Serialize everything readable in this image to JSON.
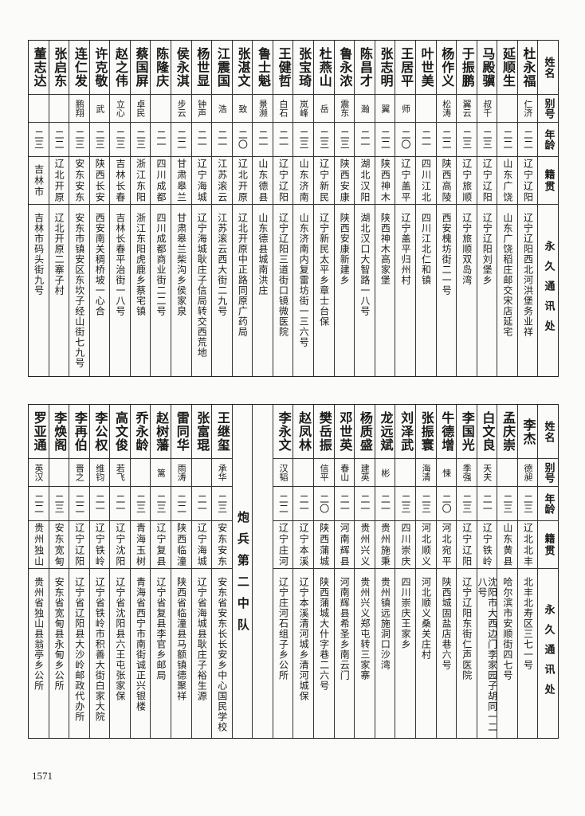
{
  "header": {
    "name": "姓名",
    "alias": "别号",
    "age": "年龄",
    "native": "籍贯",
    "address": "永久通讯处"
  },
  "top": {
    "rows": [
      {
        "name": "杜永福",
        "alias": "仁济",
        "age": "二二",
        "native": "辽宁辽阳",
        "address": "辽宁辽阳西北河洪堡务业祥"
      },
      {
        "name": "延顺生",
        "alias": "",
        "age": "二二",
        "native": "山东广饶",
        "address": "山东广饶稻庄邮交宋店延宅"
      },
      {
        "name": "马殿骥",
        "alias": "叔千",
        "age": "二三",
        "native": "辽宁辽阳",
        "address": "辽宁辽阳刘堡乡"
      },
      {
        "name": "于振鹏",
        "alias": "翼云",
        "age": "二三",
        "native": "辽宁旅顺",
        "address": "辽宁旅顺双岛湾"
      },
      {
        "name": "杨作义",
        "alias": "松涛",
        "age": "二二",
        "native": "陕西高陵",
        "address": "西安槐坊街二一号"
      },
      {
        "name": "叶世美",
        "alias": "",
        "age": "二一",
        "native": "四川江北",
        "address": "四川江北仁和镇"
      },
      {
        "name": "王居平",
        "alias": "师",
        "age": "二〇",
        "native": "辽宁盖平",
        "address": "辽宁盖平归州村"
      },
      {
        "name": "张志明",
        "alias": "翼",
        "age": "二二",
        "native": "陕西神木",
        "address": "陕西神木高家堡"
      },
      {
        "name": "陈昌才",
        "alias": "瀚",
        "age": "二一",
        "native": "湖北汉阳",
        "address": "湖北汉口大智路一八号"
      },
      {
        "name": "鲁永浓",
        "alias": "震东",
        "age": "二三",
        "native": "陕西安康",
        "address": "陕西安康新建乡"
      },
      {
        "name": "杜燕山",
        "alias": "岳",
        "age": "二三",
        "native": "辽宁新民",
        "address": "辽宁新民太平乡章士台保"
      },
      {
        "name": "张宝琦",
        "alias": "岚峰",
        "age": "二三",
        "native": "山东济南",
        "address": "山东济南内复雷坊街一三六号"
      },
      {
        "name": "王健哲",
        "alias": "白石",
        "age": "二一",
        "native": "辽宁辽阳",
        "address": "辽宁辽阳三道街口镜微医院"
      },
      {
        "name": "鲁士魁",
        "alias": "景濒",
        "age": "二一",
        "native": "山东德县",
        "address": "山东德县城南洪庄"
      },
      {
        "name": "张湛文",
        "alias": "致",
        "age": "二〇",
        "native": "辽北开原",
        "address": "辽北开原中正路同原广药局"
      },
      {
        "name": "江震国",
        "alias": "浩",
        "age": "二一",
        "native": "江苏滚云",
        "address": "江苏滚云西大街二九号"
      },
      {
        "name": "杨世显",
        "alias": "钟声",
        "age": "二一",
        "native": "辽宁海城",
        "address": "辽宁海城耿庄子信局转交西荒地"
      },
      {
        "name": "侯永淇",
        "alias": "步云",
        "age": "二二",
        "native": "甘肃皋兰",
        "address": "甘肃皋兰柴沟乡侯家泉"
      },
      {
        "name": "陈隆庆",
        "alias": "",
        "age": "二一",
        "native": "四川成都",
        "address": "四川成都商业街二二号"
      },
      {
        "name": "蔡国屏",
        "alias": "卓民",
        "age": "二三",
        "native": "浙江东阳",
        "address": "浙江东阳虎鹿乡蔡宅镇"
      },
      {
        "name": "赵之伟",
        "alias": "立心",
        "age": "二三",
        "native": "吉林长春",
        "address": "吉林长春平治街一八号"
      },
      {
        "name": "许克敬",
        "alias": "武",
        "age": "二三",
        "native": "陕西长安",
        "address": "西安南关稠桥坡一心合"
      },
      {
        "name": "连仁发",
        "alias": "鹏翔",
        "age": "二三",
        "native": "安东安东",
        "address": "安东市镇安区东坎子经山街七九号"
      },
      {
        "name": "张启东",
        "alias": "",
        "age": "二二",
        "native": "辽北开原",
        "address": "辽北开原二寨子村"
      },
      {
        "name": "董志达",
        "alias": "",
        "age": "二三",
        "native": "吉林市",
        "address": "吉林市码头街九号"
      }
    ]
  },
  "bottom": {
    "rows_right": [
      {
        "name": "李杰",
        "alias": "德昶",
        "age": "二三",
        "native": "辽北北丰",
        "address": "北丰北寿区三七一号"
      },
      {
        "name": "孟庆崇",
        "alias": "",
        "age": "二三",
        "native": "山东黄县",
        "address": "哈尔滨市安顺街四七号"
      },
      {
        "name": "白文良",
        "alias": "天夫",
        "age": "二一",
        "native": "辽宁铁岭",
        "address": "沈阳市大西边门李家园子胡同一二八号"
      },
      {
        "name": "李国光",
        "alias": "季强",
        "age": "二三",
        "native": "辽宁辽阳",
        "address": "辽宁辽阳东街仁声医院"
      },
      {
        "name": "牛德增",
        "alias": "悚",
        "age": "二〇",
        "native": "河北宛平",
        "address": "陕西城固盐店巷六号"
      },
      {
        "name": "张振寰",
        "alias": "海清",
        "age": "二三",
        "native": "河北顺义",
        "address": "河北顺义桑关庄村"
      },
      {
        "name": "刘泽武",
        "alias": "",
        "age": "二三",
        "native": "四川崇庆",
        "address": "四川崇庆王家乡"
      },
      {
        "name": "龙远斌",
        "alias": "彬",
        "age": "二一",
        "native": "贵州施秉",
        "address": "贵州镇远施洞口沙湾"
      },
      {
        "name": "杨质盛",
        "alias": "建英",
        "age": "二一",
        "native": "贵州兴义",
        "address": "贵州兴义郑屯转三家寨"
      },
      {
        "name": "邓世英",
        "alias": "春山",
        "age": "二一",
        "native": "河南辉县",
        "address": "河南辉县希圣乡南云门"
      },
      {
        "name": "樊岳振",
        "alias": "信平",
        "age": "二〇",
        "native": "陕西蒲城",
        "address": "陕西蒲城大什字巷二六号"
      },
      {
        "name": "赵凤林",
        "alias": "",
        "age": "二一",
        "native": "辽宁本溪",
        "address": "辽宁本溪清河城乡清河城保"
      },
      {
        "name": "李永文",
        "alias": "汉韬",
        "age": "二二",
        "native": "辽宁庄河",
        "address": "辽宁庄河石组子乡公所"
      }
    ],
    "unit_label": "炮兵第二中队",
    "rows_left": [
      {
        "name": "王继玺",
        "alias": "承华",
        "age": "二三",
        "native": "安东安东",
        "address": "安东省安东长长安乡中心国民学校"
      },
      {
        "name": "张富琨",
        "alias": "",
        "age": "二一",
        "native": "辽宁海城",
        "address": "辽宁省海城县耿庄子裕生源"
      },
      {
        "name": "雷同华",
        "alias": "雨涛",
        "age": "二二",
        "native": "陕西临潼",
        "address": "陕西省临潼县马额镇德聚祥"
      },
      {
        "name": "赵树藩",
        "alias": "篱",
        "age": "二三",
        "native": "辽宁复县",
        "address": "辽宁省复县李官乡邮局"
      },
      {
        "name": "乔永龄",
        "alias": "",
        "age": "二三",
        "native": "青海玉树",
        "address": "青海省西宁市南街诚正兴银楼"
      },
      {
        "name": "高文俊",
        "alias": "若飞",
        "age": "二一",
        "native": "辽宁沈阳",
        "address": "辽宁省沈阳县六王屯张家保"
      },
      {
        "name": "李公权",
        "alias": "维钧",
        "age": "二一",
        "native": "辽宁铁岭",
        "address": "辽宁省铁岭市积善大街白家大院"
      },
      {
        "name": "李再伯",
        "alias": "晋之",
        "age": "二二",
        "native": "辽宁辽阳",
        "address": "辽宁省辽阳县大沙岭邮政代办所"
      },
      {
        "name": "李焕阁",
        "alias": "",
        "age": "二三",
        "native": "安东宽甸",
        "address": "安东省宽甸县永甸乡公所"
      },
      {
        "name": "罗亚通",
        "alias": "英汉",
        "age": "二二",
        "native": "贵州独山",
        "address": "贵州省独山县翁亭乡公所"
      }
    ]
  },
  "page_number": "1571"
}
